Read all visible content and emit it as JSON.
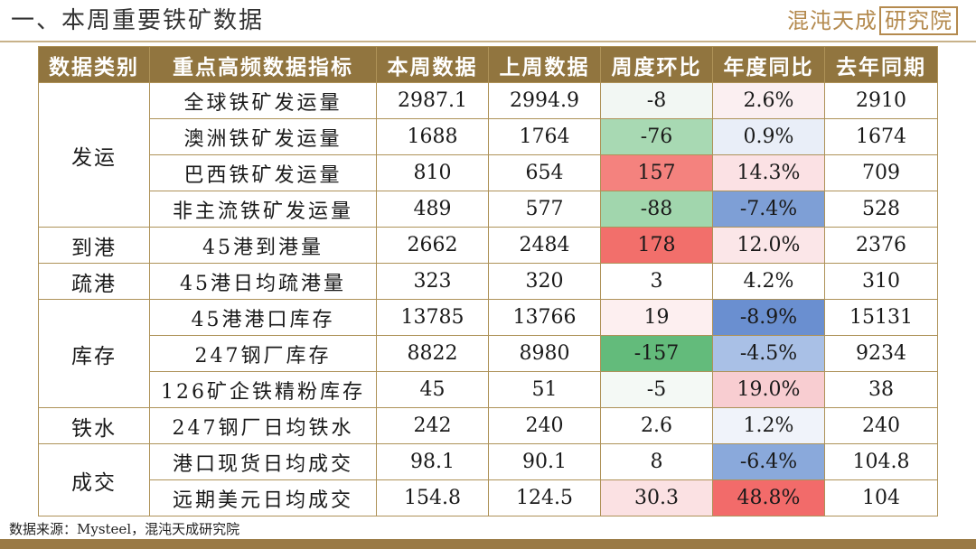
{
  "header": {
    "title": "一、本周重要铁矿数据",
    "logo_main": "混沌天成",
    "logo_boxed": "研究院"
  },
  "table": {
    "columns": [
      "数据类别",
      "重点高频数据指标",
      "本周数据",
      "上周数据",
      "周度环比",
      "年度同比",
      "去年同期"
    ],
    "groups": [
      {
        "category": "发运",
        "rows": [
          {
            "indicator": "全球铁矿发运量",
            "this_week": "2987.1",
            "last_week": "2994.9",
            "wow": "-8",
            "yoy": "2.6%",
            "last_year": "2910",
            "wow_color": "#f2f7f3",
            "yoy_color": "#fbeff1"
          },
          {
            "indicator": "澳洲铁矿发运量",
            "this_week": "1688",
            "last_week": "1764",
            "wow": "-76",
            "yoy": "0.9%",
            "last_year": "1674",
            "wow_color": "#a8d9b3",
            "yoy_color": "#e9eef8"
          },
          {
            "indicator": "巴西铁矿发运量",
            "this_week": "810",
            "last_week": "654",
            "wow": "157",
            "yoy": "14.3%",
            "last_year": "709",
            "wow_color": "#f4827e",
            "yoy_color": "#fbe1e4"
          },
          {
            "indicator": "非主流铁矿发运量",
            "this_week": "489",
            "last_week": "577",
            "wow": "-88",
            "yoy": "-7.4%",
            "last_year": "528",
            "wow_color": "#a1d6ad",
            "yoy_color": "#7e9fd6"
          }
        ]
      },
      {
        "category": "到港",
        "rows": [
          {
            "indicator": "45港到港量",
            "this_week": "2662",
            "last_week": "2484",
            "wow": "178",
            "yoy": "12.0%",
            "last_year": "2376",
            "wow_color": "#f26f6b",
            "yoy_color": "#fbe6e8"
          }
        ]
      },
      {
        "category": "疏港",
        "rows": [
          {
            "indicator": "45港日均疏港量",
            "this_week": "323",
            "last_week": "320",
            "wow": "3",
            "yoy": "4.2%",
            "last_year": "310",
            "wow_color": "#ffffff",
            "yoy_color": "#ffffff"
          }
        ]
      },
      {
        "category": "库存",
        "rows": [
          {
            "indicator": "45港港口库存",
            "this_week": "13785",
            "last_week": "13766",
            "wow": "19",
            "yoy": "-8.9%",
            "last_year": "15131",
            "wow_color": "#fdeff0",
            "yoy_color": "#6a8fd0"
          },
          {
            "indicator": "247钢厂库存",
            "this_week": "8822",
            "last_week": "8980",
            "wow": "-157",
            "yoy": "-4.5%",
            "last_year": "9234",
            "wow_color": "#63bb7b",
            "yoy_color": "#a9c0e6"
          },
          {
            "indicator": "126矿企铁精粉库存",
            "this_week": "45",
            "last_week": "51",
            "wow": "-5",
            "yoy": "19.0%",
            "last_year": "38",
            "wow_color": "#f4f9f5",
            "yoy_color": "#f8cdd1"
          }
        ]
      },
      {
        "category": "铁水",
        "rows": [
          {
            "indicator": "247钢厂日均铁水",
            "this_week": "242",
            "last_week": "240",
            "wow": "2.6",
            "yoy": "1.2%",
            "last_year": "240",
            "wow_color": "#ffffff",
            "yoy_color": "#f0f3fa"
          }
        ]
      },
      {
        "category": "成交",
        "rows": [
          {
            "indicator": "港口现货日均成交",
            "this_week": "98.1",
            "last_week": "90.1",
            "wow": "8",
            "yoy": "-6.4%",
            "last_year": "104.8",
            "wow_color": "#ffffff",
            "yoy_color": "#8aa9db"
          },
          {
            "indicator": "远期美元日均成交",
            "this_week": "154.8",
            "last_week": "124.5",
            "wow": "30.3",
            "yoy": "48.8%",
            "last_year": "104",
            "wow_color": "#fbe1e3",
            "yoy_color": "#f26b6a"
          }
        ]
      }
    ]
  },
  "footer": {
    "source": "数据来源：Mysteel，混沌天成研究院"
  }
}
